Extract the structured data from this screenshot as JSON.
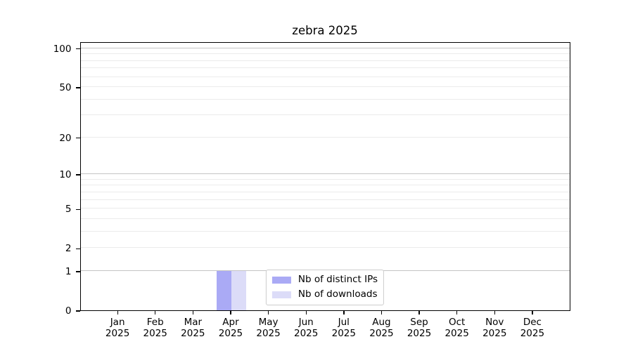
{
  "figure": {
    "background": "#ffffff"
  },
  "chart_data": {
    "type": "bar",
    "title": "zebra 2025",
    "categories": [
      "Jan 2025",
      "Feb 2025",
      "Mar 2025",
      "Apr 2025",
      "May 2025",
      "Jun 2025",
      "Jul 2025",
      "Aug 2025",
      "Sep 2025",
      "Oct 2025",
      "Nov 2025",
      "Dec 2025"
    ],
    "months": [
      "Jan",
      "Feb",
      "Mar",
      "Apr",
      "May",
      "Jun",
      "Jul",
      "Aug",
      "Sep",
      "Oct",
      "Nov",
      "Dec"
    ],
    "year": "2025",
    "series": [
      {
        "name": "Nb of distinct IPs",
        "color": "#aaaaf5",
        "values": [
          0,
          0,
          0,
          1,
          0,
          0,
          0,
          0,
          0,
          0,
          0,
          0
        ]
      },
      {
        "name": "Nb of downloads",
        "color": "#dcdcf8",
        "values": [
          0,
          0,
          0,
          1,
          0,
          0,
          0,
          0,
          0,
          0,
          0,
          0
        ]
      }
    ],
    "y_axis": {
      "scale": "log1p",
      "tick_labels": [
        "0",
        "1",
        "2",
        "5",
        "10",
        "20",
        "50",
        "100"
      ],
      "tick_values": [
        0,
        1,
        2,
        5,
        10,
        20,
        50,
        100
      ],
      "max": 113,
      "decade_grid_values": [
        1,
        10,
        100
      ],
      "minor_grid_values": [
        2,
        3,
        4,
        5,
        6,
        7,
        8,
        9,
        20,
        30,
        40,
        50,
        60,
        70,
        80,
        90
      ],
      "grid": true
    },
    "legend": {
      "position": "lower center"
    },
    "colors": {
      "grid_minor": "#ebebeb",
      "grid_decade": "#c4c4c4",
      "spine": "#000000",
      "text": "#000000"
    }
  }
}
